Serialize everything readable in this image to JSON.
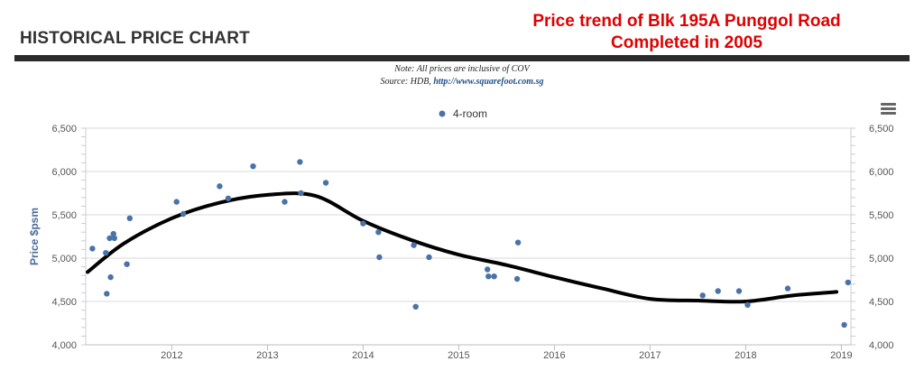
{
  "header": {
    "title": "HISTORICAL PRICE CHART",
    "callout_line1": "Price trend of Blk 195A Punggol Road",
    "callout_line2": "Completed in 2005"
  },
  "notes": {
    "line1": "Note: All prices are inclusive of COV",
    "source_prefix": "Source: HDB, ",
    "source_link": "http://www.squarefoot.com.sg"
  },
  "colors": {
    "point": "#4a72a8",
    "trend": "#000000",
    "callout": "#e00000",
    "grid": "#d8d8d8"
  },
  "chart_data": {
    "type": "scatter",
    "title": "",
    "xlabel": "",
    "ylabel": "Price $psm",
    "xlim": [
      2011.1,
      2019.1
    ],
    "ylim": [
      4000,
      6500
    ],
    "xticks": [
      2012,
      2013,
      2014,
      2015,
      2016,
      2017,
      2018,
      2019
    ],
    "yticks": [
      4000,
      4500,
      5000,
      5500,
      6000,
      6500
    ],
    "y_tick_labels": [
      "4,000",
      "4,500",
      "5,000",
      "5,500",
      "6,000",
      "6,500"
    ],
    "dual_y_axis": true,
    "grid": "horizontal",
    "legend_position": "top-center",
    "series": [
      {
        "name": "4-room",
        "marker": "circle",
        "points": [
          {
            "x": 2011.17,
            "y": 5110
          },
          {
            "x": 2011.31,
            "y": 5060
          },
          {
            "x": 2011.32,
            "y": 4590
          },
          {
            "x": 2011.35,
            "y": 5230
          },
          {
            "x": 2011.36,
            "y": 4780
          },
          {
            "x": 2011.39,
            "y": 5280
          },
          {
            "x": 2011.4,
            "y": 5230
          },
          {
            "x": 2011.53,
            "y": 4930
          },
          {
            "x": 2011.56,
            "y": 5460
          },
          {
            "x": 2012.05,
            "y": 5650
          },
          {
            "x": 2012.12,
            "y": 5510
          },
          {
            "x": 2012.5,
            "y": 5830
          },
          {
            "x": 2012.59,
            "y": 5690
          },
          {
            "x": 2012.85,
            "y": 6060
          },
          {
            "x": 2013.18,
            "y": 5650
          },
          {
            "x": 2013.34,
            "y": 6110
          },
          {
            "x": 2013.35,
            "y": 5750
          },
          {
            "x": 2013.61,
            "y": 5870
          },
          {
            "x": 2014.0,
            "y": 5400
          },
          {
            "x": 2014.16,
            "y": 5300
          },
          {
            "x": 2014.17,
            "y": 5010
          },
          {
            "x": 2014.53,
            "y": 5150
          },
          {
            "x": 2014.55,
            "y": 4440
          },
          {
            "x": 2014.69,
            "y": 5010
          },
          {
            "x": 2015.3,
            "y": 4870
          },
          {
            "x": 2015.31,
            "y": 4790
          },
          {
            "x": 2015.37,
            "y": 4790
          },
          {
            "x": 2015.61,
            "y": 4760
          },
          {
            "x": 2015.62,
            "y": 5180
          },
          {
            "x": 2017.55,
            "y": 4570
          },
          {
            "x": 2017.71,
            "y": 4620
          },
          {
            "x": 2017.93,
            "y": 4620
          },
          {
            "x": 2018.02,
            "y": 4460
          },
          {
            "x": 2018.44,
            "y": 4650
          },
          {
            "x": 2019.03,
            "y": 4230
          },
          {
            "x": 2019.07,
            "y": 4720
          }
        ]
      }
    ],
    "trend_line": [
      {
        "x": 2011.12,
        "y": 4840
      },
      {
        "x": 2011.5,
        "y": 5170
      },
      {
        "x": 2012.0,
        "y": 5460
      },
      {
        "x": 2012.5,
        "y": 5640
      },
      {
        "x": 2013.0,
        "y": 5730
      },
      {
        "x": 2013.5,
        "y": 5720
      },
      {
        "x": 2014.0,
        "y": 5430
      },
      {
        "x": 2014.5,
        "y": 5210
      },
      {
        "x": 2015.0,
        "y": 5040
      },
      {
        "x": 2015.5,
        "y": 4920
      },
      {
        "x": 2016.0,
        "y": 4780
      },
      {
        "x": 2016.5,
        "y": 4650
      },
      {
        "x": 2017.0,
        "y": 4530
      },
      {
        "x": 2017.5,
        "y": 4510
      },
      {
        "x": 2018.0,
        "y": 4500
      },
      {
        "x": 2018.5,
        "y": 4570
      },
      {
        "x": 2018.95,
        "y": 4610
      }
    ]
  }
}
